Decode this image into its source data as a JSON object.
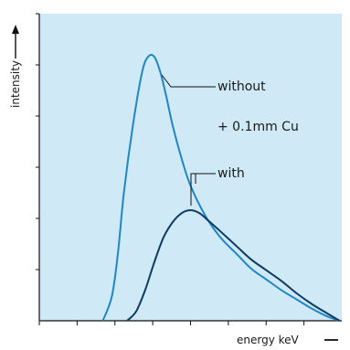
{
  "chart_data": {
    "type": "line",
    "title": "",
    "xlabel": "energy keV",
    "ylabel": "intensity",
    "x_ticks_shown": 8,
    "y_ticks_shown": 6,
    "tick_labels_shown": false,
    "grid": false,
    "background_color": "#cfe9f6",
    "xlim": [
      0,
      100
    ],
    "ylim": [
      0,
      100
    ],
    "annotations": {
      "without_label": "without",
      "with_label": "with",
      "filter_note": "+ 0.1mm Cu"
    },
    "series": [
      {
        "name": "without",
        "color": "#1f86c8",
        "x": [
          21,
          24,
          26,
          28,
          31,
          34,
          36,
          38,
          40,
          42,
          44,
          47,
          50,
          55,
          60,
          65,
          70,
          75,
          80,
          85,
          90,
          95,
          99.3
        ],
        "y": [
          0,
          8,
          22,
          42,
          64,
          81,
          86,
          86,
          81,
          73,
          64,
          53,
          44,
          34,
          27,
          22,
          17,
          13.5,
          10,
          7,
          4,
          1.5,
          0
        ]
      },
      {
        "name": "with",
        "color": "#0e3a66",
        "x": [
          29,
          32,
          35,
          38,
          41,
          44,
          47,
          50,
          53,
          56,
          60,
          65,
          70,
          75,
          80,
          85,
          90,
          95,
          99.3
        ],
        "y": [
          0,
          3,
          10,
          19,
          27,
          32,
          35,
          36,
          35,
          32.5,
          29,
          24.5,
          20,
          16.5,
          13,
          9,
          5.5,
          2.5,
          0
        ]
      }
    ]
  }
}
